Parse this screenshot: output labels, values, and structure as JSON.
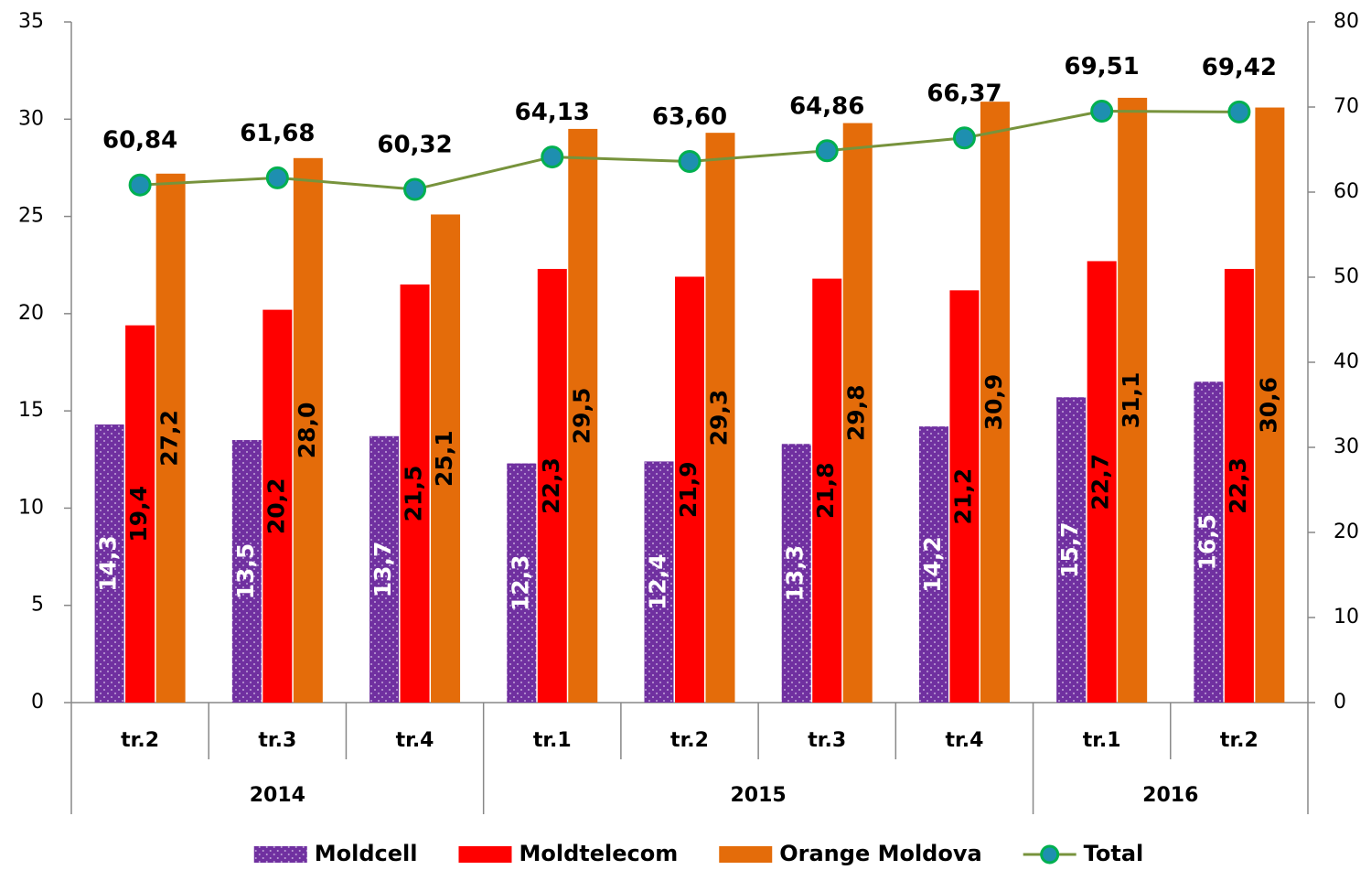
{
  "chart_data": {
    "type": "bar_line",
    "groups": [
      {
        "name": "2014",
        "categories": [
          "tr.2",
          "tr.3",
          "tr.4"
        ]
      },
      {
        "name": "2015",
        "categories": [
          "tr.1",
          "tr.2",
          "tr.3",
          "tr.4"
        ]
      },
      {
        "name": "2016",
        "categories": [
          "tr.1",
          "tr.2"
        ]
      }
    ],
    "series": [
      {
        "name": "Moldcell",
        "type": "bar",
        "color": "#7030a0",
        "pattern": "dots",
        "values": [
          14.3,
          13.5,
          13.7,
          12.3,
          12.4,
          13.3,
          14.2,
          15.7,
          16.5
        ],
        "value_labels": [
          "14,3",
          "13,5",
          "13,7",
          "12,3",
          "12,4",
          "13,3",
          "14,2",
          "15,7",
          "16,5"
        ],
        "label_color": "#ffffff"
      },
      {
        "name": "Moldtelecom",
        "type": "bar",
        "color": "#ff0000",
        "values": [
          19.4,
          20.2,
          21.5,
          22.3,
          21.9,
          21.8,
          21.2,
          22.7,
          22.3
        ],
        "value_labels": [
          "19,4",
          "20,2",
          "21,5",
          "22,3",
          "21,9",
          "21,8",
          "21,2",
          "22,7",
          "22,3"
        ],
        "label_color": "#000000"
      },
      {
        "name": "Orange Moldova",
        "type": "bar",
        "color": "#e46c0a",
        "values": [
          27.2,
          28.0,
          25.1,
          29.5,
          29.3,
          29.8,
          30.9,
          31.1,
          30.6
        ],
        "value_labels": [
          "27,2",
          "28,0",
          "25,1",
          "29,5",
          "29,3",
          "29,8",
          "30,9",
          "31,1",
          "30,6"
        ],
        "label_color": "#000000"
      },
      {
        "name": "Total",
        "type": "line",
        "axis": "y2",
        "color": "#77933c",
        "marker_color": "#1e8fb0",
        "values": [
          60.84,
          61.68,
          60.32,
          64.13,
          63.6,
          64.86,
          66.37,
          69.51,
          69.42
        ],
        "value_labels": [
          "60,84",
          "61,68",
          "60,32",
          "64,13",
          "63,60",
          "64,86",
          "66,37",
          "69,51",
          "69,42"
        ],
        "label_color": "#000000"
      }
    ],
    "ylim": [
      0,
      35
    ],
    "yticks": [
      0,
      5,
      10,
      15,
      20,
      25,
      30,
      35
    ],
    "y2lim": [
      0,
      80
    ],
    "y2ticks": [
      0,
      10,
      20,
      30,
      40,
      50,
      60,
      70,
      80
    ],
    "grid": false,
    "legend": "bottom"
  }
}
